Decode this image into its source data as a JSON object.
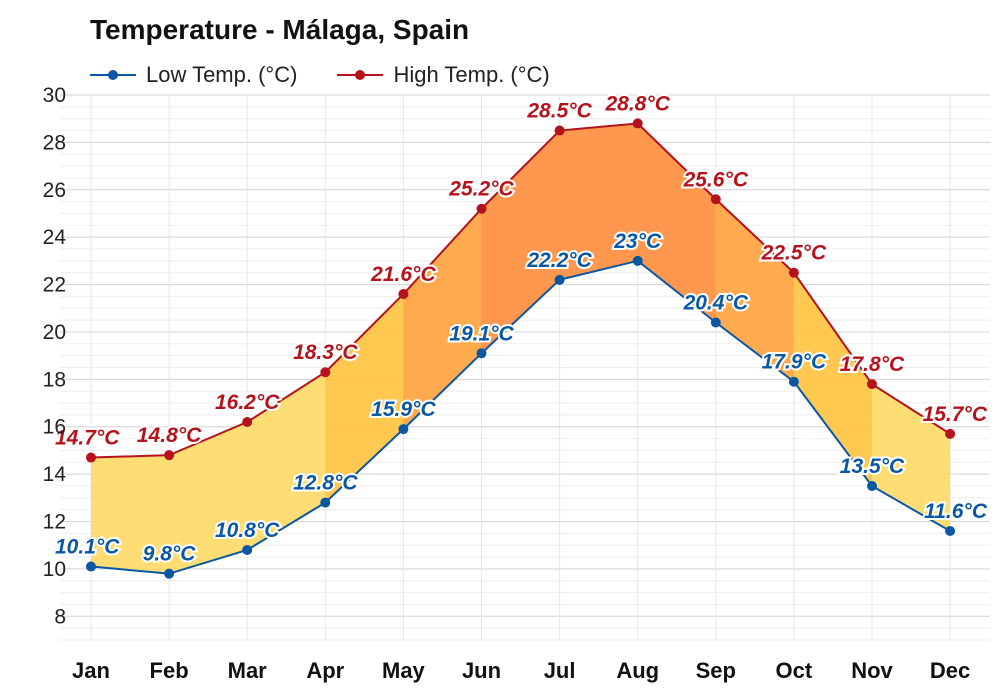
{
  "chart_data": {
    "type": "area",
    "title": "Temperature - Málaga, Spain",
    "categories": [
      "Jan",
      "Feb",
      "Mar",
      "Apr",
      "May",
      "Jun",
      "Jul",
      "Aug",
      "Sep",
      "Oct",
      "Nov",
      "Dec"
    ],
    "series": [
      {
        "name": "Low Temp. (°C)",
        "color": "#0a57a4",
        "values": [
          10.1,
          9.8,
          10.8,
          12.8,
          15.9,
          19.1,
          22.2,
          23,
          20.4,
          17.9,
          13.5,
          11.6
        ],
        "labels": [
          "10.1°C",
          "9.8°C",
          "10.8°C",
          "12.8°C",
          "15.9°C",
          "19.1°C",
          "22.2°C",
          "23°C",
          "20.4°C",
          "17.9°C",
          "13.5°C",
          "11.6°C"
        ]
      },
      {
        "name": "High Temp. (°C)",
        "color": "#b5121b",
        "values": [
          14.7,
          14.8,
          16.2,
          18.3,
          21.6,
          25.2,
          28.5,
          28.8,
          25.6,
          22.5,
          17.8,
          15.7
        ],
        "labels": [
          "14.7°C",
          "14.8°C",
          "16.2°C",
          "18.3°C",
          "21.6°C",
          "25.2°C",
          "28.5°C",
          "28.8°C",
          "25.6°C",
          "22.5°C",
          "17.8°C",
          "15.7°C"
        ]
      }
    ],
    "ylim": [
      7,
      30
    ],
    "yticks": [
      "8",
      "10",
      "12",
      "14",
      "16",
      "18",
      "20",
      "22",
      "24",
      "26",
      "28",
      "30"
    ],
    "xlabel": "",
    "ylabel": "",
    "grid": true,
    "legend_position": "top-left",
    "band_colors": {
      "cool": "#ffd966",
      "mild": "#ffc23d",
      "warm": "#ffa13c",
      "hot": "#ff8c3b"
    }
  }
}
